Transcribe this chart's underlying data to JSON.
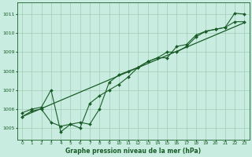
{
  "title": "Graphe pression niveau de la mer (hPa)",
  "bg_color": "#c8ede0",
  "line_color": "#1a5c28",
  "grid_color": "#a0ccb4",
  "ylim": [
    1004.4,
    1011.6
  ],
  "xlim": [
    -0.5,
    23.5
  ],
  "yticks": [
    1005,
    1006,
    1007,
    1008,
    1009,
    1010,
    1011
  ],
  "xticks": [
    0,
    1,
    2,
    3,
    4,
    5,
    6,
    7,
    8,
    9,
    10,
    11,
    12,
    13,
    14,
    15,
    16,
    17,
    18,
    19,
    20,
    21,
    22,
    23
  ],
  "line1_x": [
    0,
    1,
    2,
    3,
    4,
    5,
    6,
    7,
    8,
    9,
    10,
    11,
    12,
    13,
    14,
    15,
    16,
    17,
    18,
    19,
    20,
    21,
    22,
    23
  ],
  "line1_y": [
    1005.8,
    1006.0,
    1006.1,
    1007.0,
    1004.8,
    1005.2,
    1005.0,
    1006.3,
    1006.7,
    1007.0,
    1007.3,
    1007.7,
    1008.2,
    1008.5,
    1008.7,
    1009.0,
    1009.0,
    1009.3,
    1009.8,
    1010.1,
    1010.2,
    1010.3,
    1011.05,
    1011.0
  ],
  "line2_x": [
    0,
    1,
    2,
    3,
    4,
    5,
    6,
    7,
    8,
    9,
    10,
    11,
    12,
    13,
    14,
    15,
    16,
    17,
    18,
    19,
    20,
    21,
    22,
    23
  ],
  "line2_y": [
    1005.6,
    1005.9,
    1006.0,
    1005.3,
    1005.1,
    1005.2,
    1005.3,
    1005.2,
    1006.0,
    1007.4,
    1007.8,
    1008.0,
    1008.2,
    1008.5,
    1008.7,
    1008.7,
    1009.3,
    1009.4,
    1009.9,
    1010.1,
    1010.2,
    1010.3,
    1010.6,
    1010.6
  ],
  "line3_x": [
    0,
    23
  ],
  "line3_y": [
    1005.6,
    1010.55
  ]
}
